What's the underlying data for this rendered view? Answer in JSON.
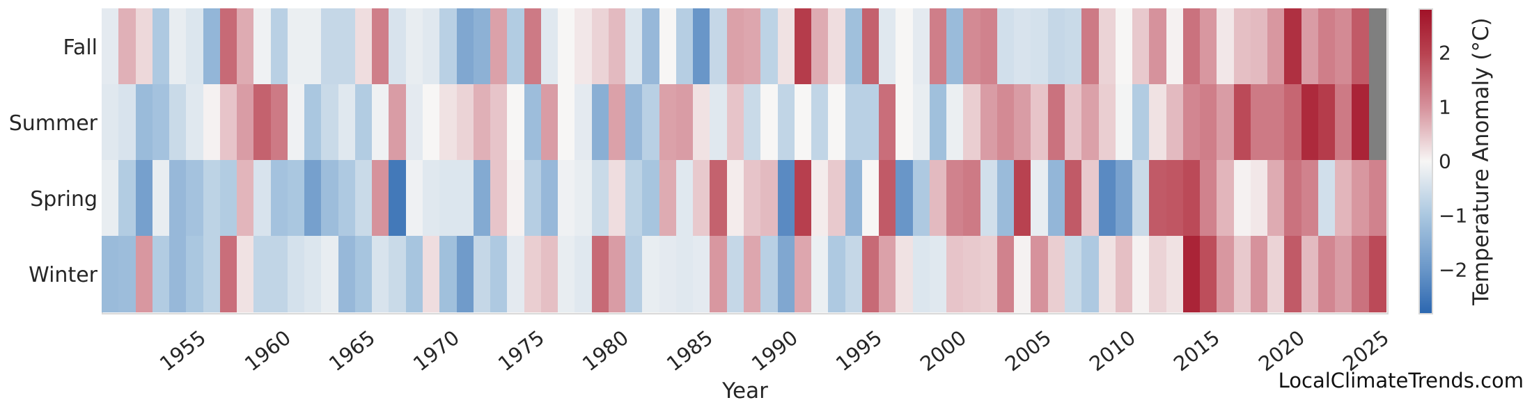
{
  "page": {
    "watermark": "LocalClimateTrends.com",
    "background_color": "#ffffff",
    "text_color": "#262626"
  },
  "chart_data": {
    "type": "heatmap",
    "title": "",
    "xlabel": "Year",
    "ylabel": "",
    "rows": [
      "Fall",
      "Summer",
      "Spring",
      "Winter"
    ],
    "x_start_year": 1950,
    "x_end_year": 2025,
    "x_tick_labels": [
      "1955",
      "1960",
      "1965",
      "1970",
      "1975",
      "1980",
      "1985",
      "1990",
      "1995",
      "2000",
      "2005",
      "2010",
      "2015",
      "2020",
      "2025"
    ],
    "x_tick_years": [
      1955,
      1960,
      1965,
      1970,
      1975,
      1980,
      1985,
      1990,
      1995,
      2000,
      2005,
      2010,
      2015,
      2020,
      2025
    ],
    "grid": false,
    "legend_position": "right-colorbar",
    "colorbar": {
      "label": "Temperature Anomaly (°C)",
      "tick_labels": [
        "2",
        "1",
        "0",
        "−1",
        "−2"
      ],
      "tick_values": [
        2,
        1,
        0,
        -1,
        -2
      ],
      "vmin": -2.8,
      "vmax": 2.8
    },
    "colormap": {
      "anchor_values": [
        -2.8,
        -2.0,
        -1.0,
        0.0,
        1.0,
        2.0,
        2.8
      ],
      "anchor_colors": [
        "#2c67b0",
        "#6996c8",
        "#aac7e0",
        "#f7f6f5",
        "#d6929c",
        "#b84250",
        "#a11228"
      ],
      "missing_color": "#7f7f7f"
    },
    "note": "null = missing data (gray cell); values are temperature anomaly in degrees C",
    "series": [
      {
        "name": "Fall",
        "values": [
          -0.25,
          0.7,
          0.3,
          -0.95,
          -0.2,
          -0.35,
          -1.35,
          1.5,
          0.75,
          -0.1,
          -0.8,
          -0.15,
          -0.15,
          -0.65,
          -0.65,
          0.25,
          1.25,
          -0.4,
          -0.2,
          -0.3,
          -0.8,
          -1.65,
          -1.45,
          0.85,
          -0.9,
          1.3,
          -0.3,
          0.0,
          0.15,
          0.35,
          0.6,
          -0.35,
          -1.3,
          0.0,
          -0.85,
          -2.0,
          -0.65,
          0.85,
          0.8,
          -0.75,
          0.2,
          2.1,
          0.75,
          0.25,
          -1.15,
          1.6,
          -0.3,
          0.0,
          -0.25,
          1.25,
          -1.25,
          1.1,
          1.2,
          -0.5,
          -0.4,
          -0.45,
          -0.65,
          -0.6,
          1.3,
          0.35,
          0.0,
          0.45,
          1.0,
          0.05,
          1.4,
          0.95,
          0.15,
          0.55,
          0.6,
          0.95,
          2.3,
          0.9,
          1.25,
          1.1,
          1.7,
          null
        ]
      },
      {
        "name": "Summer",
        "values": [
          -0.3,
          -0.4,
          -1.25,
          -1.1,
          -0.6,
          -0.3,
          0.05,
          0.5,
          0.9,
          1.6,
          1.3,
          -0.1,
          -1.0,
          -0.6,
          -0.3,
          -0.9,
          -0.1,
          0.9,
          -0.25,
          0.0,
          0.2,
          0.35,
          0.7,
          0.5,
          0.0,
          -1.2,
          0.9,
          0.0,
          -0.25,
          -1.5,
          0.85,
          -1.3,
          -0.8,
          0.85,
          0.9,
          0.2,
          -0.3,
          0.5,
          -0.6,
          0.0,
          -0.7,
          0.0,
          -0.7,
          0.0,
          -0.8,
          -0.8,
          1.45,
          0.0,
          -0.2,
          -1.15,
          -0.15,
          0.4,
          0.9,
          1.1,
          0.9,
          0.5,
          1.4,
          0.5,
          0.85,
          0.4,
          -0.05,
          -0.9,
          0.2,
          0.6,
          1.15,
          1.25,
          0.9,
          1.9,
          1.3,
          1.3,
          1.55,
          2.4,
          2.1,
          1.3,
          2.5,
          null
        ]
      },
      {
        "name": "Spring",
        "values": [
          -0.2,
          -0.9,
          -1.8,
          -0.2,
          -1.3,
          -1.1,
          -0.75,
          -0.9,
          0.65,
          -0.4,
          -1.1,
          -1.0,
          -1.8,
          -1.2,
          -0.95,
          -0.6,
          1.0,
          -2.5,
          -0.1,
          -0.3,
          -0.35,
          -0.35,
          -1.6,
          0.5,
          0.05,
          -0.85,
          -1.3,
          -0.1,
          -0.2,
          -0.6,
          0.25,
          -0.75,
          -1.05,
          0.75,
          -0.3,
          0.45,
          1.6,
          0.1,
          0.5,
          0.6,
          -2.2,
          2.05,
          0.1,
          0.45,
          -1.35,
          0.0,
          1.7,
          -2.0,
          -0.95,
          0.6,
          1.2,
          1.3,
          -0.5,
          -1.25,
          2.0,
          -0.2,
          -1.35,
          1.7,
          0.45,
          -2.2,
          -1.75,
          -0.6,
          1.7,
          1.75,
          1.9,
          1.2,
          0.65,
          0.05,
          0.15,
          0.75,
          1.4,
          1.2,
          -0.5,
          0.65,
          0.95,
          1.2
        ]
      },
      {
        "name": "Winter",
        "values": [
          -1.25,
          -1.2,
          0.95,
          -0.9,
          -1.3,
          -1.0,
          -0.75,
          1.45,
          0.2,
          -0.7,
          -0.7,
          -0.45,
          -0.35,
          -0.2,
          -1.3,
          -1.05,
          -0.4,
          -0.6,
          -1.05,
          0.25,
          -1.15,
          -1.9,
          -0.65,
          -0.95,
          -0.25,
          0.4,
          0.55,
          -0.2,
          -0.3,
          1.5,
          0.9,
          -0.85,
          -0.2,
          -0.25,
          -0.3,
          -0.25,
          0.95,
          -0.65,
          0.8,
          -0.8,
          -1.65,
          0.8,
          -0.15,
          -0.95,
          -0.65,
          1.5,
          0.85,
          0.2,
          -0.35,
          -0.3,
          0.5,
          0.45,
          0.4,
          1.2,
          0.05,
          1.0,
          0.4,
          -0.6,
          -0.95,
          0.2,
          0.55,
          0.05,
          0.35,
          0.2,
          2.5,
          1.85,
          0.95,
          0.45,
          1.0,
          0.35,
          1.7,
          0.6,
          1.15,
          0.9,
          1.4,
          1.9
        ]
      }
    ]
  }
}
